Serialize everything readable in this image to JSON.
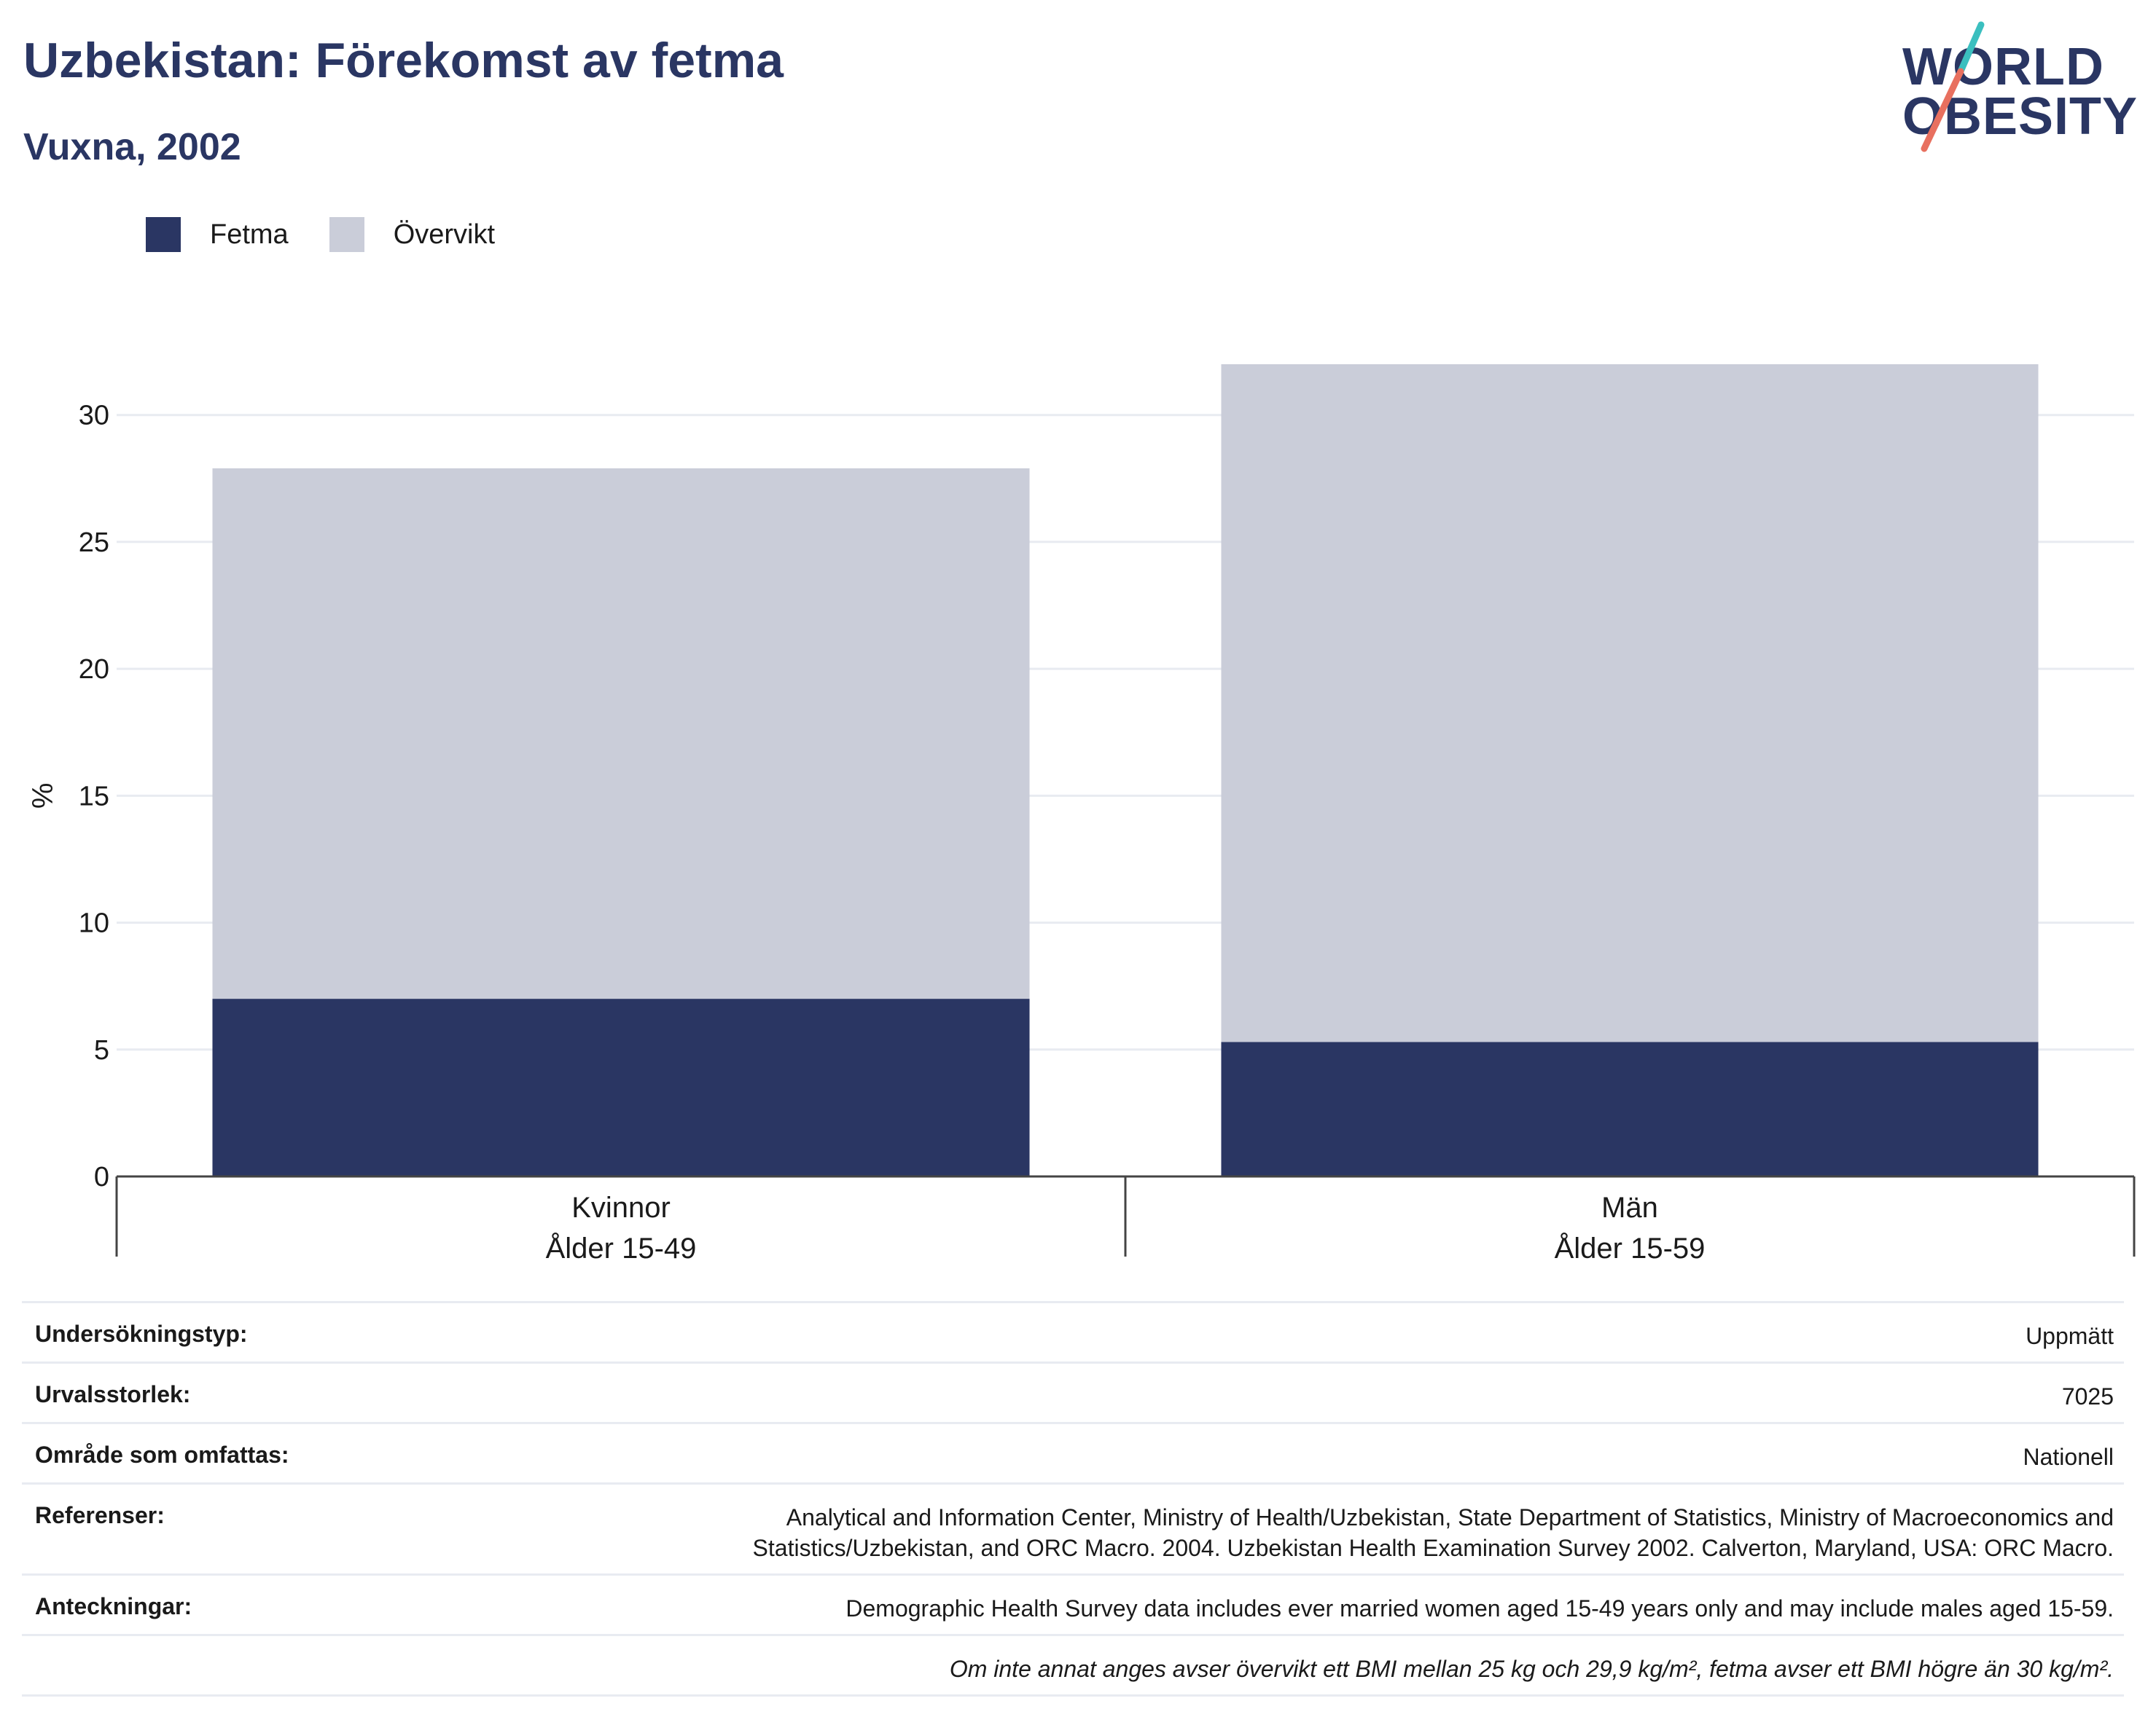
{
  "header": {
    "title": "Uzbekistan: Förekomst av fetma",
    "subtitle": "Vuxna, 2002"
  },
  "logo": {
    "line1": "WORLD",
    "line2": "OBESITY",
    "accent_teal": "#3bbfbf",
    "accent_red": "#e8705f"
  },
  "legend": [
    {
      "label": "Fetma",
      "color": "#2a3663"
    },
    {
      "label": "Övervikt",
      "color": "#cacdd9"
    }
  ],
  "chart_data": {
    "type": "bar",
    "stacked": true,
    "ylabel": "%",
    "xlabel": "",
    "ylim": [
      0,
      32
    ],
    "yticks": [
      0,
      5,
      10,
      15,
      20,
      25,
      30
    ],
    "grid": true,
    "legend_position": "top-left",
    "categories": [
      {
        "line1": "Kvinnor",
        "line2": "Ålder 15-49"
      },
      {
        "line1": "Män",
        "line2": "Ålder 15-59"
      }
    ],
    "series": [
      {
        "name": "Fetma",
        "color": "#2a3663",
        "values": [
          7.0,
          5.3
        ]
      },
      {
        "name": "Övervikt",
        "color": "#cacdd9",
        "values": [
          20.9,
          26.8
        ]
      }
    ]
  },
  "info_table": {
    "survey_type": {
      "label": "Undersökningstyp:",
      "value": "Uppmätt"
    },
    "sample_size": {
      "label": "Urvalsstorlek:",
      "value": "7025"
    },
    "coverage": {
      "label": "Område som omfattas:",
      "value": "Nationell"
    },
    "references": {
      "label": "Referenser:",
      "value_line1": "Analytical and Information Center, Ministry of Health/Uzbekistan, State Department of Statistics, Ministry of Macroeconomics and",
      "value_line2": "Statistics/Uzbekistan, and ORC Macro. 2004. Uzbekistan Health Examination Survey 2002. Calverton, Maryland, USA: ORC Macro."
    },
    "notes": {
      "label": "Anteckningar:",
      "value": "Demographic Health Survey data includes ever married women aged 15-49 years only and may include males aged 15-59."
    },
    "footnote": "Om inte annat anges avser övervikt ett BMI mellan 25 kg och 29,9 kg/m², fetma avser ett BMI högre än 30 kg/m²."
  }
}
